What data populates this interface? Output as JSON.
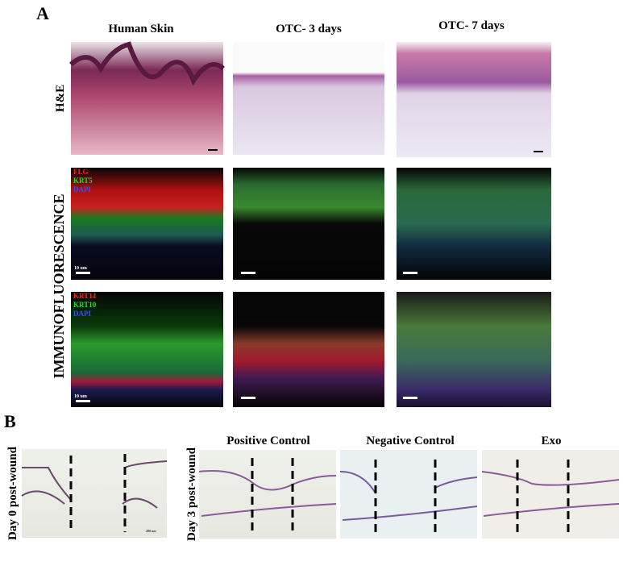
{
  "panel_a": {
    "label": "A",
    "columns": [
      "Human Skin",
      "OTC- 3 days",
      "OTC- 7 days"
    ],
    "rows": {
      "he": "H&E",
      "if": "IMMUNOFLUORESCENCE"
    },
    "stains_1": [
      "FLG",
      "KRT5",
      "DAPI"
    ],
    "stains_2": [
      "KRT14",
      "KRT10",
      "DAPI"
    ],
    "scale_bars": [
      "10 um",
      "10 um"
    ]
  },
  "panel_b": {
    "label": "B",
    "rows": [
      "Day 0 post-wound",
      "Day 3 post-wound"
    ],
    "columns": [
      "Positive Control",
      "Negative Control",
      "Exo"
    ],
    "scale_bar": "200 um"
  }
}
